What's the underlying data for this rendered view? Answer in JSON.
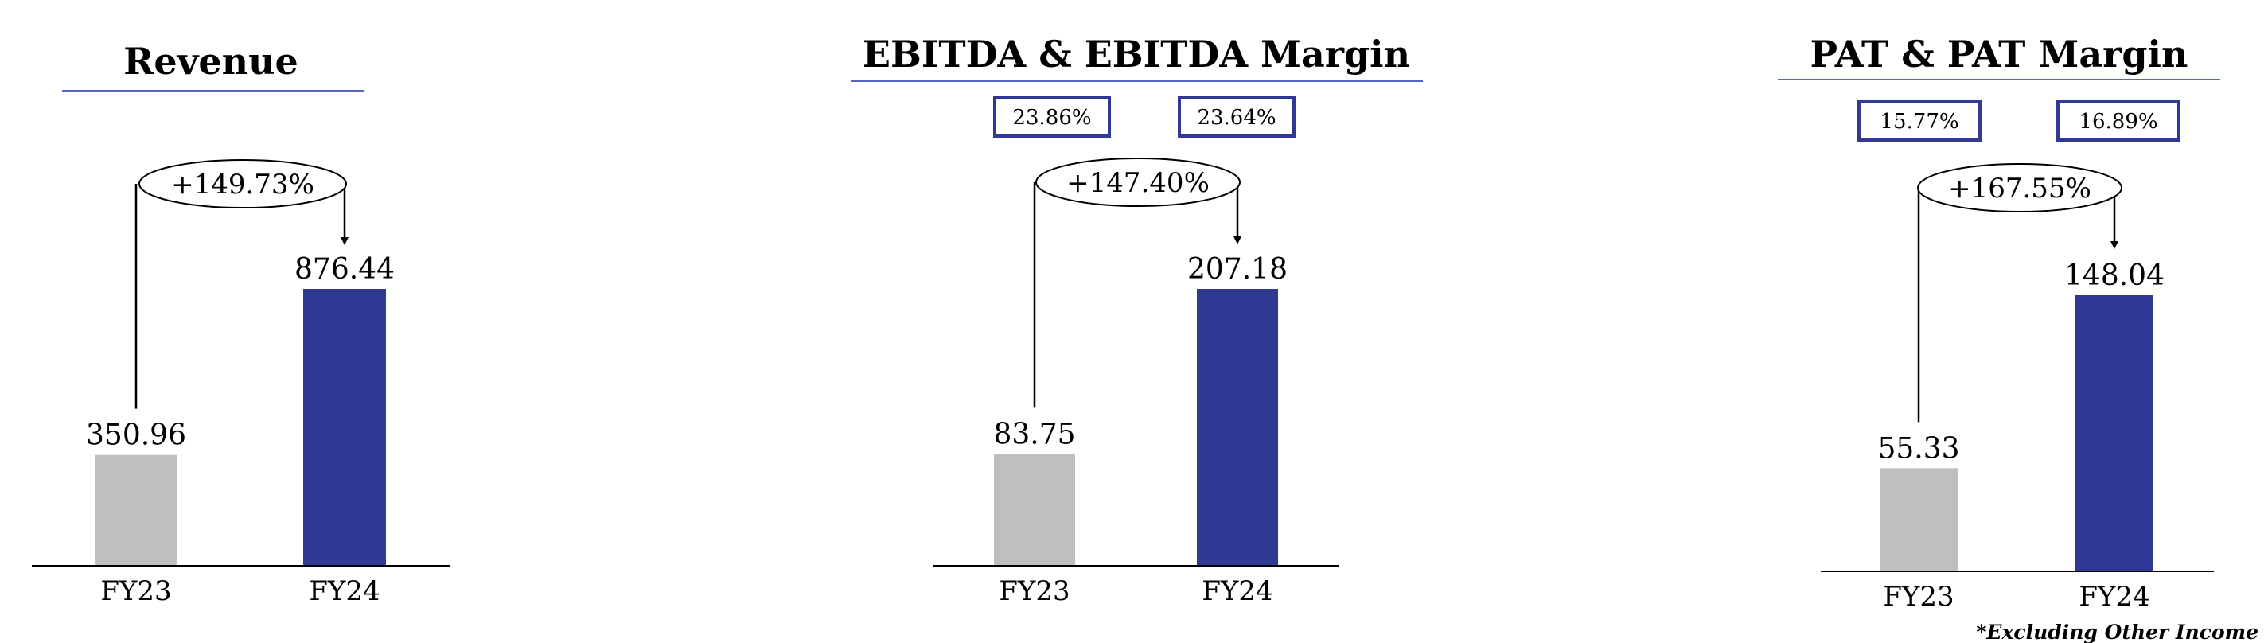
{
  "colors": {
    "fy23_bar": "#bfbfbf",
    "fy24_bar": "#303a94",
    "title_rule": "#5565c2",
    "margin_box": "#303a94"
  },
  "chart_data": [
    {
      "type": "bar",
      "title": "Revenue",
      "categories": [
        "FY23",
        "FY24"
      ],
      "values": [
        350.96,
        876.44
      ],
      "value_labels": [
        "350.96",
        "876.44"
      ],
      "growth_label": "+149.73%",
      "margins": []
    },
    {
      "type": "bar",
      "title": "EBITDA & EBITDA Margin",
      "categories": [
        "FY23",
        "FY24"
      ],
      "values": [
        83.75,
        207.18
      ],
      "value_labels": [
        "83.75",
        "207.18"
      ],
      "growth_label": "+147.40%",
      "margins": [
        "23.86%",
        "23.64%"
      ]
    },
    {
      "type": "bar",
      "title": "PAT & PAT Margin",
      "categories": [
        "FY23",
        "FY24"
      ],
      "values": [
        55.33,
        148.04
      ],
      "value_labels": [
        "55.33",
        "148.04"
      ],
      "growth_label": "+167.55%",
      "margins": [
        "15.77%",
        "16.89%"
      ]
    }
  ],
  "footnote": "*Excluding Other Income"
}
